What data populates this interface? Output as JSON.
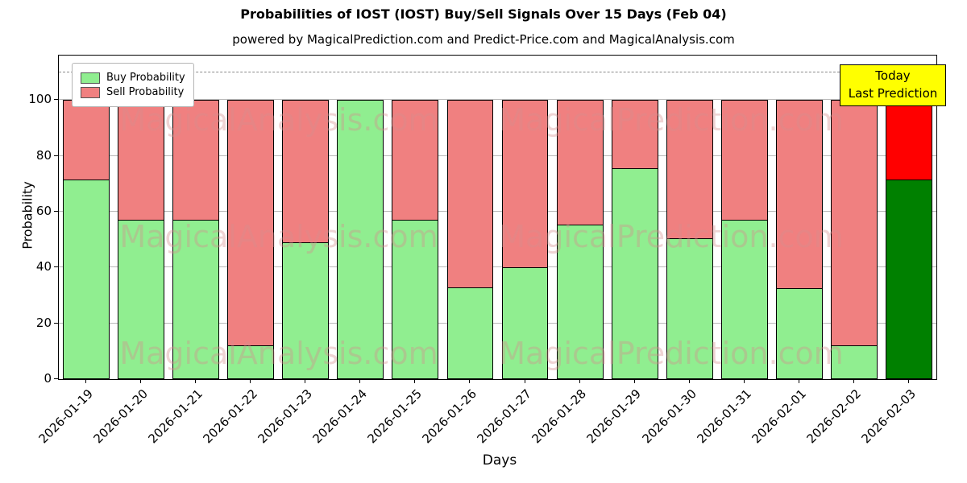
{
  "title": "Probabilities of IOST (IOST) Buy/Sell Signals Over 15 Days (Feb 04)",
  "subtitle": "powered by MagicalPrediction.com and Predict-Price.com and MagicalAnalysis.com",
  "xlabel": "Days",
  "ylabel": "Probability",
  "legend": {
    "buy_label": "Buy Probability",
    "sell_label": "Sell Probability"
  },
  "annotation": {
    "line1": "Today",
    "line2": "Last Prediction"
  },
  "watermark": {
    "left_text": "MagicalAnalysis.com",
    "right_text": "MagicalPrediction.com"
  },
  "colors": {
    "buy": "#90EE90",
    "sell": "#F08080",
    "last_buy": "#008000",
    "last_sell": "#FF0000",
    "annotation_bg": "#FFFF00",
    "grid": "#b9b9b9"
  },
  "chart_data": {
    "type": "bar",
    "stacked": true,
    "title": "Probabilities of IOST (IOST) Buy/Sell Signals Over 15 Days (Feb 04)",
    "xlabel": "Days",
    "ylabel": "Probability",
    "legend_position": "upper left",
    "grid": true,
    "categories": [
      "2026-01-19",
      "2026-01-20",
      "2026-01-21",
      "2026-01-22",
      "2026-01-23",
      "2026-01-24",
      "2026-01-25",
      "2026-01-26",
      "2026-01-27",
      "2026-01-28",
      "2026-01-29",
      "2026-01-30",
      "2026-01-31",
      "2026-02-01",
      "2026-02-02",
      "2026-02-03"
    ],
    "series": [
      {
        "name": "Buy Probability",
        "values": [
          71.5,
          57,
          57,
          12,
          49,
          100,
          57,
          33,
          40,
          55.5,
          75.5,
          50.5,
          57,
          32.5,
          12,
          71.5
        ]
      },
      {
        "name": "Sell Probability",
        "values": [
          28.5,
          43,
          43,
          88,
          51,
          0,
          43,
          67,
          60,
          44.5,
          24.5,
          49.5,
          43,
          67.5,
          88,
          28.5
        ]
      }
    ],
    "yticks": [
      0,
      20,
      40,
      60,
      80,
      100
    ],
    "ylim": [
      0,
      116
    ],
    "dashed_line_y": 110,
    "highlight_last_bar": true
  }
}
